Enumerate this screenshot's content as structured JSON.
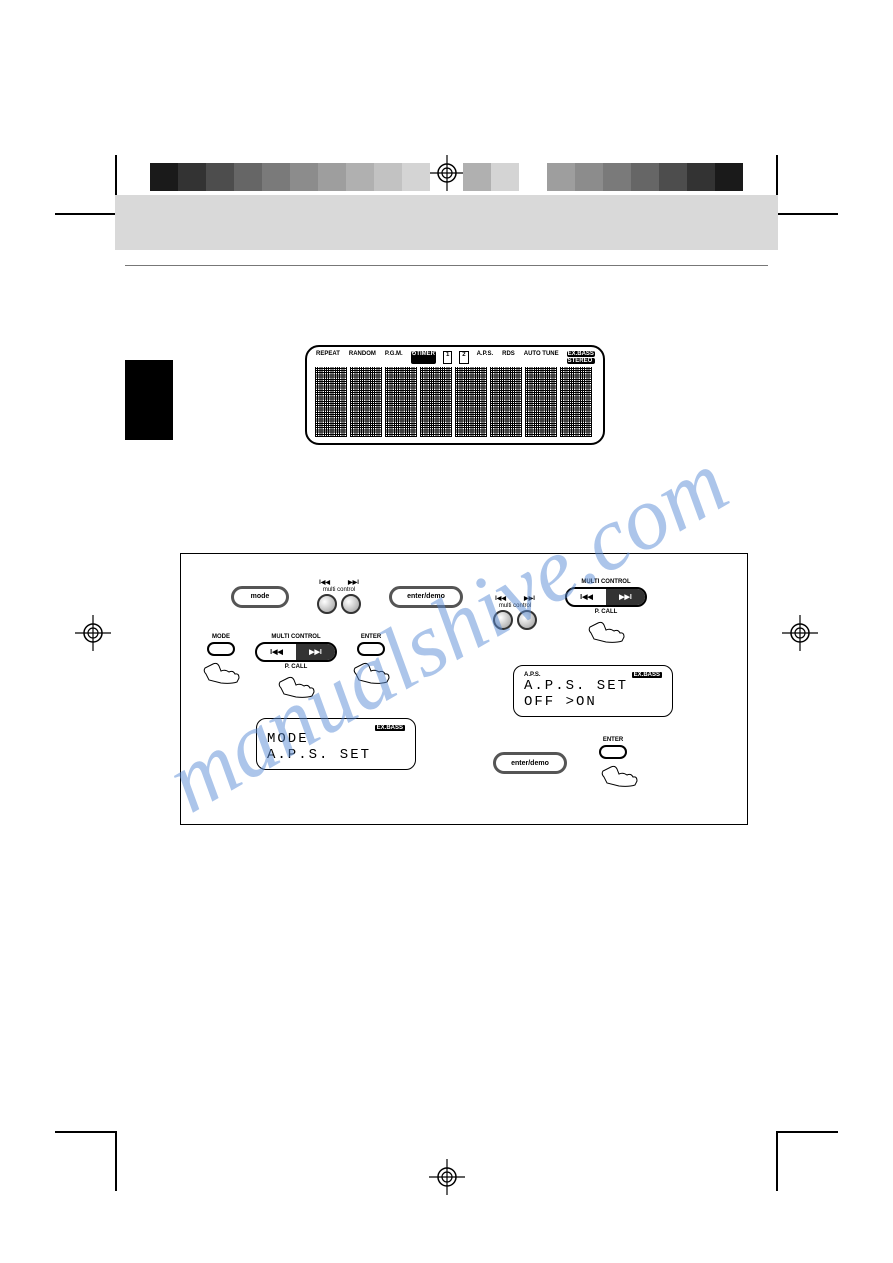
{
  "watermark": "manualshive.com",
  "colorbar_left": [
    "#1a1a1a",
    "#333333",
    "#4d4d4d",
    "#666666",
    "#7a7a7a",
    "#8c8c8c",
    "#9e9e9e",
    "#b0b0b0",
    "#c2c2c2",
    "#d4d4d4"
  ],
  "colorbar_right": [
    "#1a1a1a",
    "#333333",
    "#4d4d4d",
    "#666666",
    "#7a7a7a",
    "#8c8c8c",
    "#9e9e9e",
    "#ffffff",
    "#d4d4d4",
    "#b0b0b0"
  ],
  "lcd_top": {
    "row1": {
      "repeat": "REPEAT",
      "random": "RANDOM",
      "pgm": "P.G.M.",
      "timer": "⏲TIMER",
      "one": "1",
      "two": "2",
      "aps": "A.P.S.",
      "rds": "RDS",
      "autotune": "AUTO TUNE",
      "exbass": "EX.BASS",
      "stereo": "STEREO"
    }
  },
  "buttons": {
    "mode": "mode",
    "enterdemo": "enter/demo",
    "multi_skip_back": "I◀◀",
    "multi_skip_fwd": "▶▶I",
    "multi_label": "multi control",
    "multicontrol_caps": "MULTI CONTROL",
    "rocker_back": "I◀◀",
    "rocker_fwd": "▶▶I",
    "pcall": "P. CALL",
    "mode_caps": "MODE",
    "enter_caps": "ENTER"
  },
  "lcd_mode": {
    "badge": "EX.BASS",
    "line1": " MODE",
    "line2": "A.P.S. SET"
  },
  "lcd_aps": {
    "top_left": "A.P.S.",
    "badge": "EX.BASS",
    "line1": "A.P.S. SET",
    "line2": "   OFF >ON"
  }
}
